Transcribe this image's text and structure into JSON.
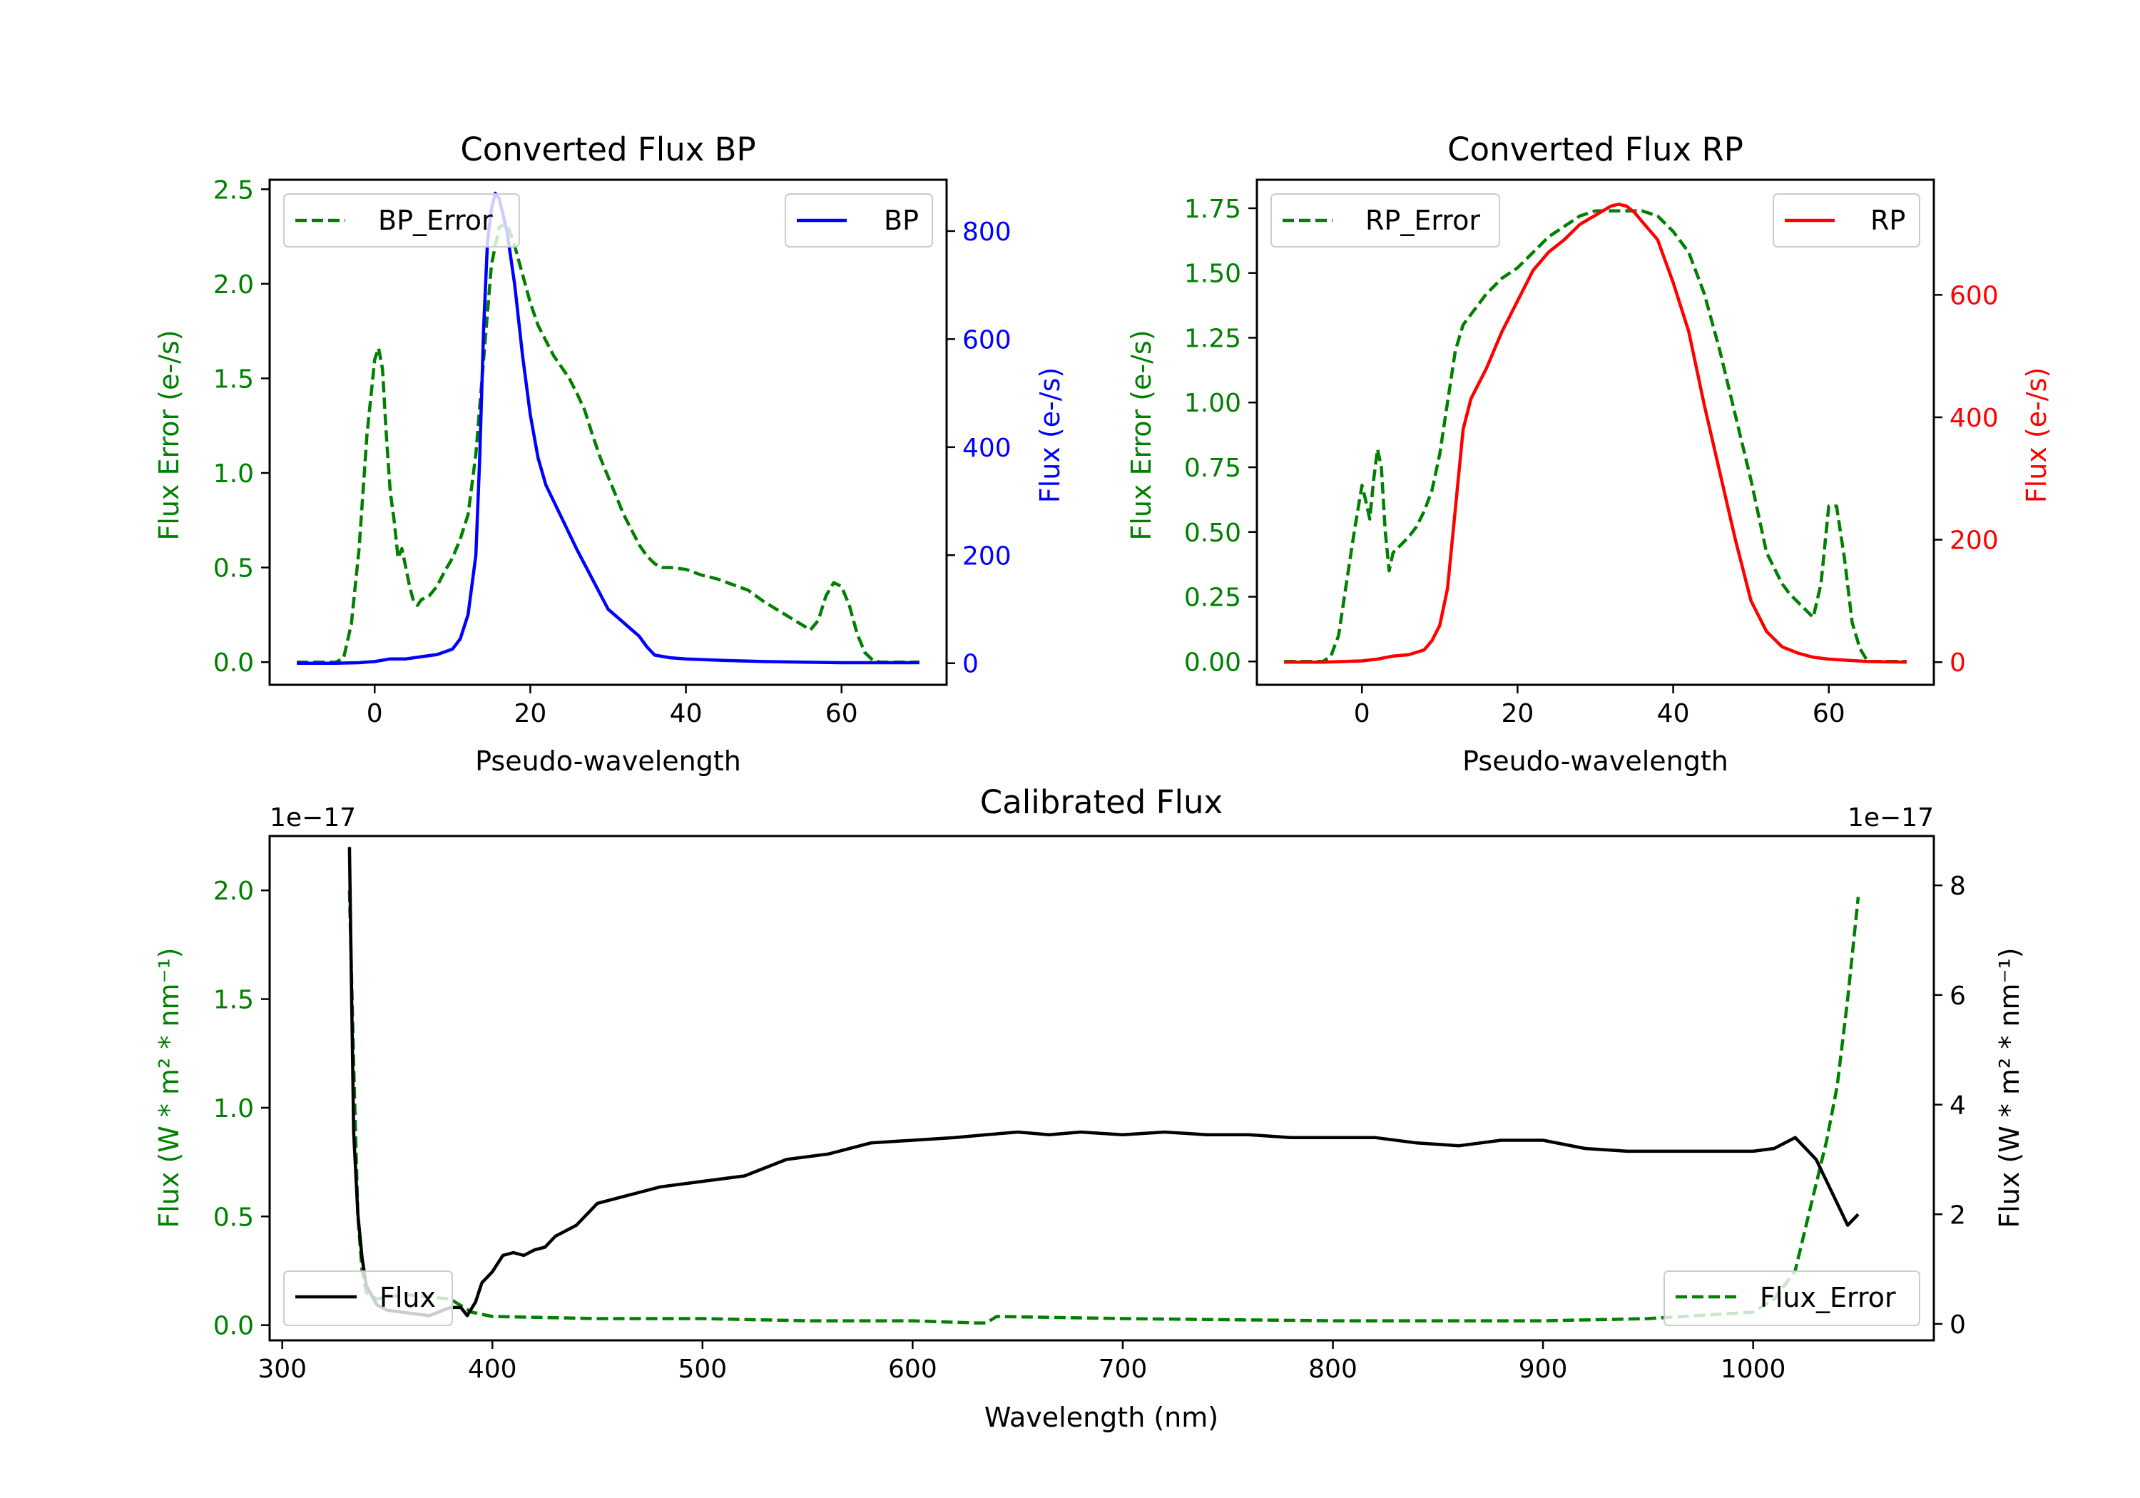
{
  "chart_data": [
    {
      "type": "line",
      "title": "Converted Flux BP",
      "xlabel": "Pseudo-wavelength",
      "ylabel_left": "Flux Error (e-/s)",
      "ylabel_right": "Flux (e-/s)",
      "xlim": [
        -13.5,
        73.5
      ],
      "ylim_left": [
        -0.12,
        2.55
      ],
      "ylim_right": [
        -40,
        895
      ],
      "x_ticks": [
        "0",
        "20",
        "40",
        "60"
      ],
      "y_left_ticks": [
        "0.0",
        "0.5",
        "1.0",
        "1.5",
        "2.0",
        "2.5"
      ],
      "y_right_ticks": [
        "0",
        "200",
        "400",
        "600",
        "800"
      ],
      "colors": {
        "left_axis": "#008000",
        "right_axis": "#0000ff",
        "error": "#008000",
        "flux": "#0000ff"
      },
      "series": [
        {
          "name": "BP_Error",
          "axis": "left",
          "style": "dashed",
          "x": [
            -10,
            -5,
            -4,
            -3,
            -2,
            -1,
            0,
            0.5,
            1,
            1.5,
            2,
            2.5,
            3,
            3.5,
            4,
            4.5,
            5,
            5.5,
            6,
            7,
            8,
            9,
            10,
            11,
            12,
            13,
            14,
            15,
            16,
            17,
            18,
            19,
            20,
            21,
            22,
            23,
            24,
            25,
            26,
            27,
            28,
            29,
            30,
            31,
            32,
            33,
            34,
            35,
            36,
            37,
            38,
            40,
            42,
            44,
            46,
            48,
            50,
            52,
            54,
            56,
            57,
            58,
            59,
            60,
            61,
            62,
            63,
            64,
            65,
            70
          ],
          "values": [
            0,
            0,
            0.02,
            0.2,
            0.6,
            1.2,
            1.6,
            1.66,
            1.55,
            1.2,
            0.9,
            0.75,
            0.55,
            0.6,
            0.5,
            0.4,
            0.32,
            0.3,
            0.33,
            0.35,
            0.4,
            0.48,
            0.55,
            0.65,
            0.78,
            1.1,
            1.6,
            2.1,
            2.3,
            2.32,
            2.2,
            2.05,
            1.9,
            1.78,
            1.7,
            1.62,
            1.56,
            1.5,
            1.42,
            1.33,
            1.2,
            1.08,
            0.98,
            0.88,
            0.78,
            0.7,
            0.62,
            0.56,
            0.52,
            0.5,
            0.5,
            0.49,
            0.46,
            0.44,
            0.41,
            0.38,
            0.32,
            0.27,
            0.22,
            0.17,
            0.22,
            0.35,
            0.42,
            0.4,
            0.3,
            0.15,
            0.05,
            0.01,
            0,
            0
          ]
        },
        {
          "name": "BP",
          "axis": "right",
          "style": "solid",
          "x": [
            -10,
            -5,
            -2,
            0,
            2,
            4,
            6,
            8,
            10,
            11,
            12,
            13,
            13.5,
            14,
            14.5,
            15,
            15.5,
            16,
            17,
            18,
            19,
            20,
            21,
            22,
            24,
            26,
            28,
            30,
            32,
            34,
            35,
            36,
            38,
            40,
            45,
            50,
            55,
            60,
            65,
            70
          ],
          "values": [
            0,
            0,
            1,
            3,
            8,
            8,
            12,
            16,
            26,
            45,
            90,
            200,
            380,
            620,
            780,
            840,
            870,
            860,
            800,
            700,
            570,
            460,
            380,
            330,
            270,
            210,
            155,
            100,
            75,
            50,
            30,
            15,
            10,
            8,
            5,
            3,
            2,
            1,
            1,
            1
          ]
        }
      ]
    },
    {
      "type": "line",
      "title": "Converted Flux RP",
      "xlabel": "Pseudo-wavelength",
      "ylabel_left": "Flux Error (e-/s)",
      "ylabel_right": "Flux (e-/s)",
      "xlim": [
        -13.5,
        73.5
      ],
      "ylim_left": [
        -0.09,
        1.86
      ],
      "ylim_right": [
        -37,
        788
      ],
      "x_ticks": [
        "0",
        "20",
        "40",
        "60"
      ],
      "y_left_ticks": [
        "0.00",
        "0.25",
        "0.50",
        "0.75",
        "1.00",
        "1.25",
        "1.50",
        "1.75"
      ],
      "y_right_ticks": [
        "0",
        "200",
        "400",
        "600"
      ],
      "colors": {
        "left_axis": "#008000",
        "right_axis": "#ff0000",
        "error": "#008000",
        "flux": "#ff0000"
      },
      "series": [
        {
          "name": "RP_Error",
          "axis": "left",
          "style": "dashed",
          "x": [
            -10,
            -5,
            -4,
            -3,
            -2,
            -1,
            0,
            0.5,
            1,
            1.5,
            2,
            2.5,
            3,
            3.5,
            4,
            5,
            6,
            7,
            8,
            9,
            10,
            11,
            12,
            13,
            14,
            16,
            18,
            20,
            22,
            24,
            26,
            28,
            30,
            32,
            34,
            36,
            38,
            40,
            42,
            44,
            46,
            48,
            50,
            52,
            54,
            55,
            56,
            57,
            58,
            59,
            60,
            61,
            62,
            63,
            64,
            65,
            70
          ],
          "values": [
            0,
            0,
            0.02,
            0.1,
            0.3,
            0.5,
            0.68,
            0.62,
            0.55,
            0.7,
            0.82,
            0.75,
            0.5,
            0.35,
            0.42,
            0.45,
            0.48,
            0.52,
            0.58,
            0.66,
            0.8,
            1.0,
            1.2,
            1.3,
            1.34,
            1.42,
            1.48,
            1.52,
            1.58,
            1.64,
            1.68,
            1.72,
            1.74,
            1.74,
            1.74,
            1.74,
            1.72,
            1.66,
            1.58,
            1.42,
            1.2,
            0.95,
            0.7,
            0.42,
            0.3,
            0.26,
            0.23,
            0.2,
            0.17,
            0.3,
            0.6,
            0.6,
            0.4,
            0.15,
            0.05,
            0,
            0
          ]
        },
        {
          "name": "RP",
          "axis": "right",
          "style": "solid",
          "x": [
            -10,
            -5,
            0,
            2,
            4,
            6,
            8,
            9,
            10,
            11,
            12,
            13,
            14,
            16,
            18,
            20,
            22,
            24,
            26,
            28,
            30,
            32,
            33,
            34,
            35,
            36,
            38,
            40,
            42,
            44,
            46,
            48,
            50,
            52,
            54,
            56,
            58,
            60,
            65,
            70
          ],
          "values": [
            0,
            0,
            2,
            5,
            10,
            12,
            20,
            35,
            60,
            120,
            250,
            380,
            430,
            480,
            540,
            590,
            640,
            670,
            690,
            715,
            730,
            745,
            748,
            745,
            735,
            720,
            690,
            620,
            540,
            420,
            310,
            200,
            100,
            50,
            25,
            15,
            8,
            5,
            1,
            0
          ]
        }
      ]
    },
    {
      "type": "line",
      "title": "Calibrated Flux",
      "xlabel": "Wavelength (nm)",
      "ylabel_left": "Flux (W * m² * nm⁻¹)",
      "ylabel_right": "Flux (W * m² * nm⁻¹)",
      "offset_left": "1e−17",
      "offset_right": "1e−17",
      "xlim": [
        294,
        1086
      ],
      "ylim_left": [
        -0.07,
        2.25
      ],
      "ylim_right": [
        -0.3,
        8.9
      ],
      "x_ticks": [
        "300",
        "400",
        "500",
        "600",
        "700",
        "800",
        "900",
        "1000"
      ],
      "y_left_ticks": [
        "0.0",
        "0.5",
        "1.0",
        "1.5",
        "2.0"
      ],
      "y_right_ticks": [
        "0",
        "2",
        "4",
        "6",
        "8"
      ],
      "colors": {
        "left_axis": "#008000",
        "right_axis": "#000000",
        "error": "#008000",
        "flux": "#000000"
      },
      "series": [
        {
          "name": "Flux_Error",
          "axis": "left",
          "style": "dashed",
          "x": [
            332,
            334,
            336,
            338,
            340,
            345,
            350,
            360,
            370,
            380,
            390,
            400,
            450,
            500,
            550,
            600,
            630,
            635,
            640,
            700,
            800,
            900,
            950,
            1000,
            1010,
            1020,
            1025,
            1030,
            1035,
            1040,
            1045,
            1050
          ],
          "values": [
            2.0,
            1.2,
            0.5,
            0.25,
            0.15,
            0.12,
            0.13,
            0.14,
            0.13,
            0.12,
            0.06,
            0.04,
            0.03,
            0.03,
            0.02,
            0.02,
            0.01,
            0.01,
            0.04,
            0.03,
            0.02,
            0.02,
            0.03,
            0.06,
            0.12,
            0.25,
            0.45,
            0.65,
            0.85,
            1.1,
            1.5,
            1.97
          ]
        },
        {
          "name": "Flux",
          "axis": "right",
          "style": "solid",
          "x": [
            332,
            333,
            334,
            336,
            338,
            340,
            345,
            350,
            360,
            370,
            380,
            385,
            388,
            392,
            395,
            400,
            405,
            410,
            415,
            420,
            425,
            430,
            440,
            450,
            460,
            470,
            480,
            500,
            520,
            540,
            560,
            580,
            600,
            620,
            635,
            650,
            665,
            680,
            700,
            720,
            740,
            760,
            780,
            800,
            820,
            840,
            860,
            880,
            900,
            920,
            940,
            960,
            980,
            1000,
            1010,
            1020,
            1030,
            1040,
            1045,
            1050
          ],
          "values": [
            8.7,
            6.0,
            3.5,
            2.0,
            1.2,
            0.7,
            0.35,
            0.25,
            0.2,
            0.15,
            0.3,
            0.3,
            0.15,
            0.4,
            0.75,
            0.95,
            1.25,
            1.3,
            1.25,
            1.35,
            1.4,
            1.6,
            1.8,
            2.2,
            2.3,
            2.4,
            2.5,
            2.6,
            2.7,
            3.0,
            3.1,
            3.3,
            3.35,
            3.4,
            3.45,
            3.5,
            3.45,
            3.5,
            3.45,
            3.5,
            3.45,
            3.45,
            3.4,
            3.4,
            3.4,
            3.3,
            3.25,
            3.35,
            3.35,
            3.2,
            3.15,
            3.15,
            3.15,
            3.15,
            3.2,
            3.4,
            3.0,
            2.2,
            1.8,
            2.0
          ]
        }
      ]
    }
  ]
}
